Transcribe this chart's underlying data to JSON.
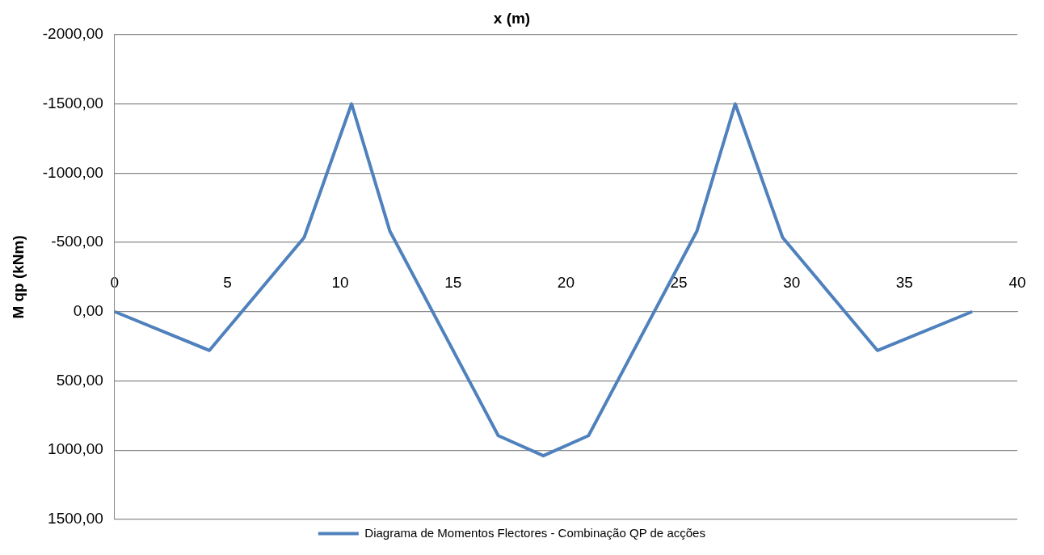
{
  "chart_data": {
    "type": "line",
    "xlabel": "x (m)",
    "ylabel": "M qp (kNm)",
    "series": [
      {
        "name": "Diagrama de Momentos Flectores - Combinação QP de acções",
        "color": "#4f81bd",
        "x": [
          0,
          4.2,
          8.4,
          10.5,
          12.2,
          17,
          19,
          21,
          25.8,
          27.5,
          29.6,
          33.8,
          38
        ],
        "values": [
          0,
          280,
          -535,
          -1500,
          -580,
          895,
          1040,
          895,
          -580,
          -1500,
          -535,
          280,
          0
        ]
      }
    ],
    "xlim": [
      0,
      40
    ],
    "xticks": [
      0,
      5,
      10,
      15,
      20,
      25,
      30,
      35,
      40
    ],
    "ylim": [
      1500,
      -2000
    ],
    "yticks": [
      {
        "value": -2000,
        "label": "-2000,00"
      },
      {
        "value": -1500,
        "label": "-1500,00"
      },
      {
        "value": -1000,
        "label": "-1000,00"
      },
      {
        "value": -500,
        "label": "-500,00"
      },
      {
        "value": 0,
        "label": "0,00"
      },
      {
        "value": 500,
        "label": "500,00"
      },
      {
        "value": 1000,
        "label": "1000,00"
      },
      {
        "value": 1500,
        "label": "1500,00"
      }
    ],
    "grid": "y",
    "legend": "bottom",
    "marker": "none",
    "line_style": "solid"
  }
}
